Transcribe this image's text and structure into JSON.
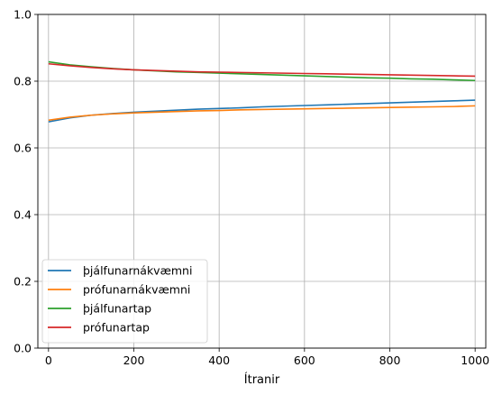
{
  "chart_data": {
    "type": "line",
    "title": "",
    "xlabel": "Ítranir",
    "ylabel": "",
    "xlim": [
      -25,
      1025
    ],
    "ylim": [
      0,
      1
    ],
    "xticks": [
      0,
      200,
      400,
      600,
      800,
      1000
    ],
    "yticks": [
      0.0,
      0.2,
      0.4,
      0.6,
      0.8,
      1.0
    ],
    "ytick_labels": [
      "0.0",
      "0.2",
      "0.4",
      "0.6",
      "0.8",
      "1.0"
    ],
    "grid": true,
    "legend_position": "lower-left",
    "x": [
      0,
      50,
      100,
      150,
      200,
      250,
      300,
      350,
      400,
      450,
      500,
      550,
      600,
      650,
      700,
      750,
      800,
      850,
      900,
      950,
      1000
    ],
    "series": [
      {
        "name": "þjálfunarnákvæmni",
        "color": "#1f77b4",
        "values": [
          0.678,
          0.69,
          0.698,
          0.703,
          0.707,
          0.71,
          0.713,
          0.716,
          0.718,
          0.72,
          0.723,
          0.725,
          0.727,
          0.729,
          0.731,
          0.733,
          0.735,
          0.737,
          0.739,
          0.741,
          0.743
        ]
      },
      {
        "name": "prófunarnákvæmni",
        "color": "#ff7f0e",
        "values": [
          0.683,
          0.692,
          0.698,
          0.702,
          0.705,
          0.707,
          0.709,
          0.711,
          0.712,
          0.714,
          0.715,
          0.716,
          0.717,
          0.718,
          0.719,
          0.72,
          0.721,
          0.722,
          0.723,
          0.724,
          0.726
        ]
      },
      {
        "name": "þjálfunartap",
        "color": "#2ca02c",
        "values": [
          0.858,
          0.849,
          0.843,
          0.838,
          0.834,
          0.831,
          0.828,
          0.826,
          0.824,
          0.822,
          0.82,
          0.818,
          0.816,
          0.814,
          0.812,
          0.81,
          0.809,
          0.807,
          0.806,
          0.804,
          0.802
        ]
      },
      {
        "name": "prófunartap",
        "color": "#d62728",
        "values": [
          0.852,
          0.846,
          0.841,
          0.837,
          0.834,
          0.832,
          0.83,
          0.828,
          0.827,
          0.826,
          0.825,
          0.824,
          0.823,
          0.822,
          0.821,
          0.82,
          0.819,
          0.818,
          0.817,
          0.816,
          0.815
        ]
      }
    ]
  }
}
